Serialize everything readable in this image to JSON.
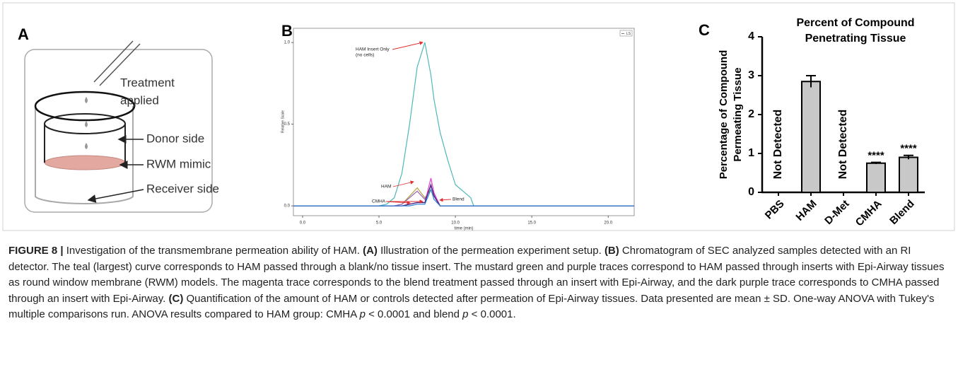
{
  "diagram": {
    "label": "A",
    "treatment": [
      "Treatment",
      "applied"
    ],
    "donor": "Donor side",
    "membrane": "RWM mimic",
    "receiver": "Receiver side"
  },
  "chart_data": [
    {
      "type": "line",
      "label": "B",
      "xlabel": "time (min)",
      "ylabel": "Relative Scale",
      "legend": "LS",
      "x": [
        -0.6,
        5,
        5.5,
        6,
        6.5,
        7,
        7.5,
        8,
        8.4,
        8.6,
        9,
        9.5,
        10,
        10.5,
        11,
        11.2,
        21.7
      ],
      "series": [
        {
          "color": "#4fb8b8",
          "values": [
            0,
            0,
            0.01,
            0.05,
            0.2,
            0.5,
            0.85,
            1.0,
            0.8,
            0.65,
            0.45,
            0.28,
            0.13,
            0.09,
            0.05,
            0,
            0
          ]
        },
        {
          "color": "#b5a642",
          "values": [
            0,
            0,
            0,
            0,
            0.01,
            0.06,
            0.11,
            0.05,
            0.1,
            0.06,
            0,
            0,
            0,
            0,
            0,
            0,
            0
          ]
        },
        {
          "color": "#9a5fb5",
          "values": [
            0,
            0,
            0,
            0,
            0.01,
            0.05,
            0.09,
            0.04,
            0.12,
            0.07,
            0,
            0,
            0,
            0,
            0,
            0,
            0
          ]
        },
        {
          "color": "#e040d0",
          "values": [
            0,
            0,
            0,
            0,
            0,
            0.01,
            0.02,
            0.02,
            0.17,
            0.08,
            0,
            0,
            0,
            0,
            0,
            0,
            0
          ]
        },
        {
          "color": "#3b1f7a",
          "values": [
            0,
            0,
            0,
            0,
            0,
            0.01,
            0.02,
            0.02,
            0.13,
            0.06,
            0,
            0,
            0,
            0,
            0,
            0,
            0
          ]
        },
        {
          "color": "#2a7fd4",
          "values": [
            0,
            0,
            0,
            0,
            0,
            0,
            0.01,
            0.01,
            0.1,
            0.04,
            0,
            0,
            0,
            0,
            0,
            0,
            0
          ]
        }
      ],
      "annotations": [
        [
          "HAM Insert Only",
          "(no cells)"
        ],
        [
          "HAM"
        ],
        [
          "CMHA"
        ],
        [
          "Blend"
        ]
      ],
      "xlim": [
        -0.6,
        21.7
      ],
      "ylim": [
        -0.06,
        1.087
      ],
      "xticks": [
        {
          "value": 0,
          "label": "0.0"
        },
        {
          "value": 5,
          "label": "5.0"
        },
        {
          "value": 10,
          "label": "10.0"
        },
        {
          "value": 15,
          "label": "15.0"
        },
        {
          "value": 20,
          "label": "20.0"
        }
      ],
      "yticks": [
        {
          "value": 0,
          "label": "0.0"
        },
        {
          "value": 0.5,
          "label": "0.5"
        },
        {
          "value": 1,
          "label": "1.0"
        }
      ]
    },
    {
      "type": "bar",
      "label": "C",
      "title": [
        "Percent of Compound",
        "Penetrating Tissue"
      ],
      "ylabel": [
        "Percentage of Compound",
        "Permeating Tissue"
      ],
      "categories": [
        "PBS",
        "HAM",
        "D-Met",
        "CMHA",
        "Blend"
      ],
      "values": [
        null,
        2.85,
        null,
        0.75,
        0.9
      ],
      "errors": [
        null,
        0.15,
        null,
        0.02,
        0.05
      ],
      "annotations": [
        "Not Detected",
        null,
        "Not Detected",
        "****",
        "****"
      ],
      "color": "#c8c8c8",
      "ylim": [
        0,
        4
      ],
      "yticks": [
        0,
        1,
        2,
        3,
        4
      ]
    }
  ],
  "caption": {
    "segments": [
      {
        "text": "FIGURE 8 | ",
        "bold": true
      },
      {
        "text": "Investigation of the transmembrane permeation ability of HAM. "
      },
      {
        "text": "(A)",
        "bold": true
      },
      {
        "text": " Illustration of the permeation experiment setup. "
      },
      {
        "text": "(B)",
        "bold": true
      },
      {
        "text": " Chromatogram of SEC analyzed samples detected with an RI detector. The teal (largest) curve corresponds to HAM passed through a blank/no tissue insert. The mustard green and purple traces correspond to HAM passed through inserts with Epi-Airway tissues as round window membrane (RWM) models. The magenta trace corresponds to the blend treatment passed through an insert with Epi-Airway, and the dark purple trace corresponds to CMHA passed through an insert with Epi-Airway. "
      },
      {
        "text": "(C)",
        "bold": true
      },
      {
        "text": " Quantification of the amount of HAM or controls detected after permeation of Epi-Airway tissues. Data presented are mean ± SD. One-way ANOVA with Tukey's multiple comparisons run. ANOVA results compared to HAM group: CMHA "
      },
      {
        "text": "p",
        "italic": true
      },
      {
        "text": " < 0.0001 and blend "
      },
      {
        "text": "p",
        "italic": true
      },
      {
        "text": " < 0.0001."
      }
    ]
  }
}
